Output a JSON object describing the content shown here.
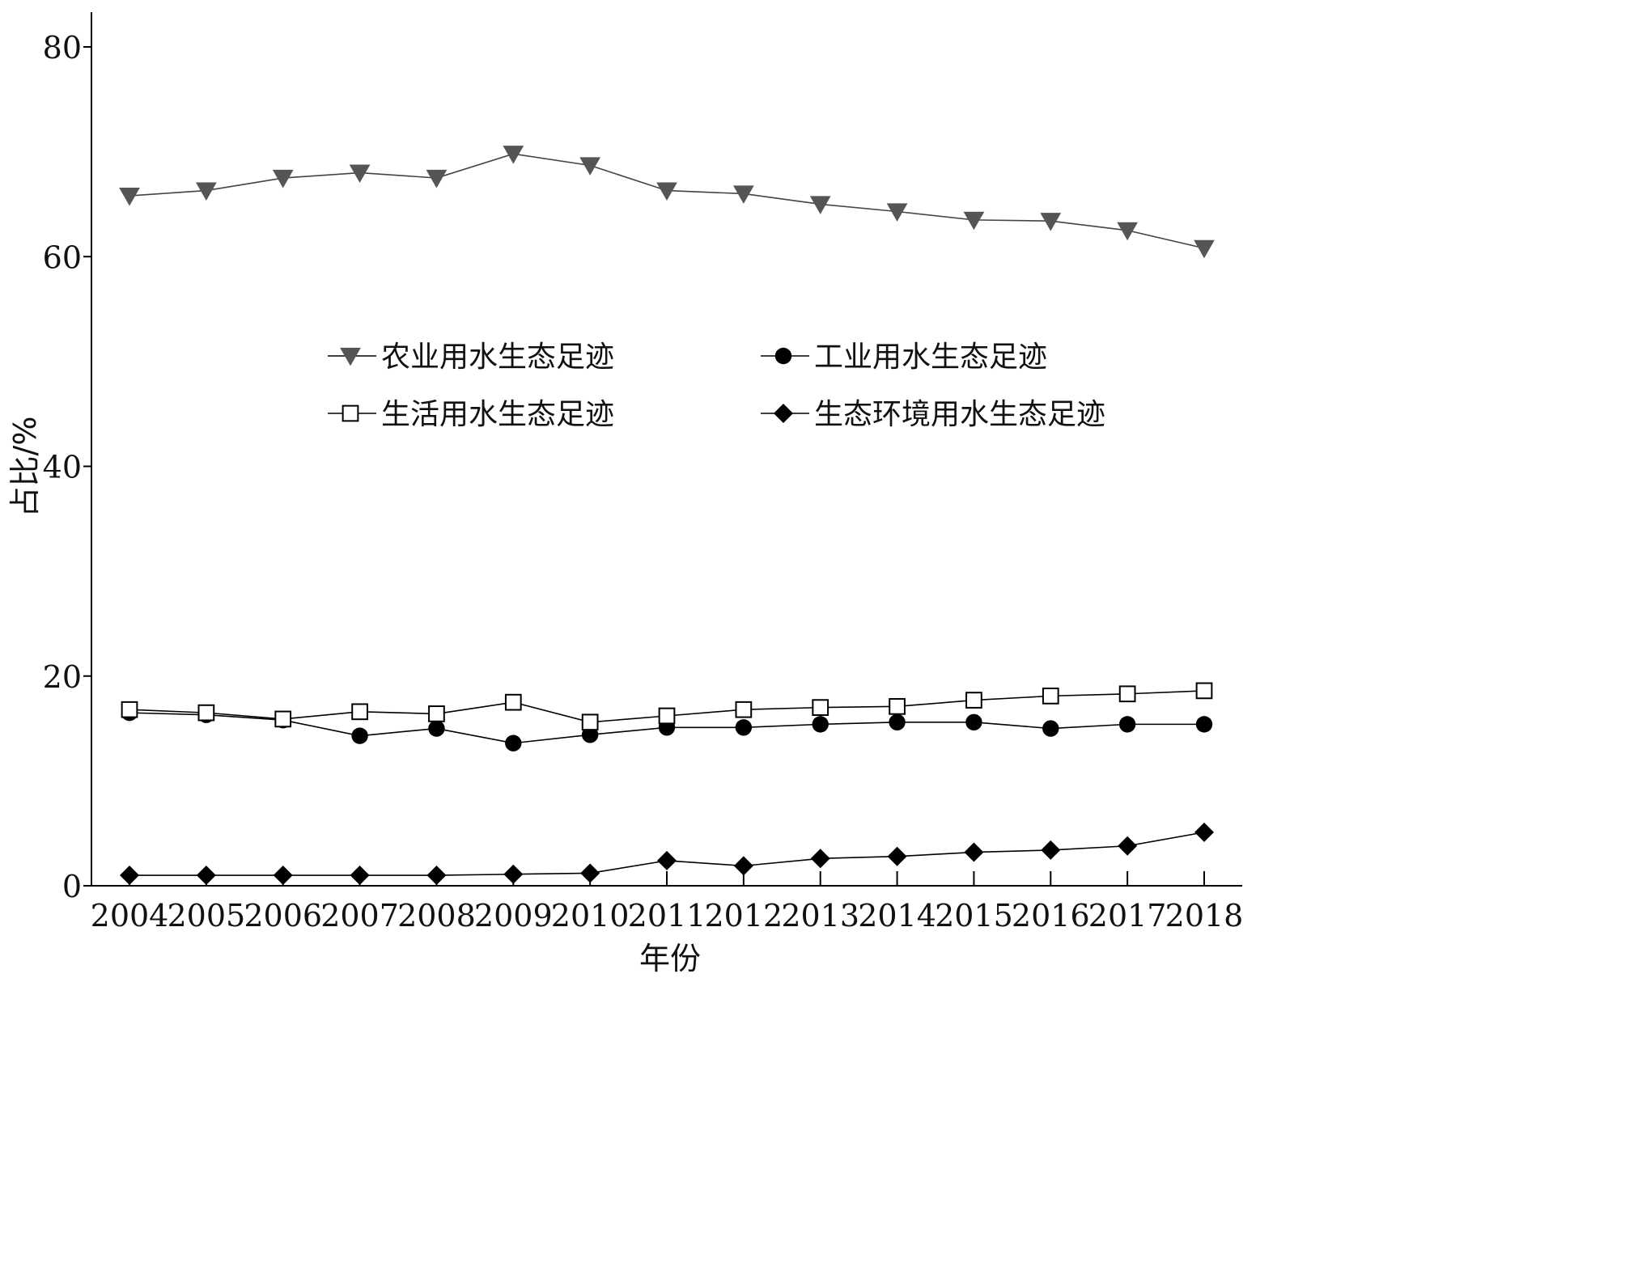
{
  "chart_data": {
    "type": "line",
    "title": "",
    "xlabel": "年份",
    "ylabel": "占比/%",
    "x": [
      2004,
      2005,
      2006,
      2007,
      2008,
      2009,
      2010,
      2011,
      2012,
      2013,
      2014,
      2015,
      2016,
      2017,
      2018
    ],
    "xlim": [
      2004,
      2018
    ],
    "ylim": [
      0,
      80
    ],
    "yticks": [
      0,
      20,
      40,
      60,
      80
    ],
    "grid": false,
    "legend_position": "upper-center",
    "series": [
      {
        "name": "农业用水生态足迹",
        "marker": "triangle-down",
        "color": "#555555",
        "values": [
          65.8,
          66.3,
          67.5,
          68.0,
          67.5,
          69.8,
          68.7,
          66.3,
          66.0,
          65.0,
          64.3,
          63.5,
          63.4,
          62.5,
          60.8
        ]
      },
      {
        "name": "工业用水生态足迹",
        "marker": "circle",
        "color": "#000000",
        "values": [
          16.5,
          16.3,
          15.8,
          14.3,
          15.0,
          13.6,
          14.4,
          15.1,
          15.1,
          15.4,
          15.6,
          15.6,
          15.0,
          15.4,
          15.4
        ]
      },
      {
        "name": "生活用水生态足迹",
        "marker": "square-open",
        "color": "#000000",
        "values": [
          16.8,
          16.5,
          15.9,
          16.6,
          16.4,
          17.5,
          15.6,
          16.2,
          16.8,
          17.0,
          17.1,
          17.7,
          18.1,
          18.3,
          18.6
        ]
      },
      {
        "name": "生态环境用水生态足迹",
        "marker": "diamond",
        "color": "#000000",
        "values": [
          1.0,
          1.0,
          1.0,
          1.0,
          1.0,
          1.1,
          1.2,
          2.4,
          1.9,
          2.6,
          2.8,
          3.2,
          3.4,
          3.8,
          5.1
        ]
      }
    ]
  }
}
